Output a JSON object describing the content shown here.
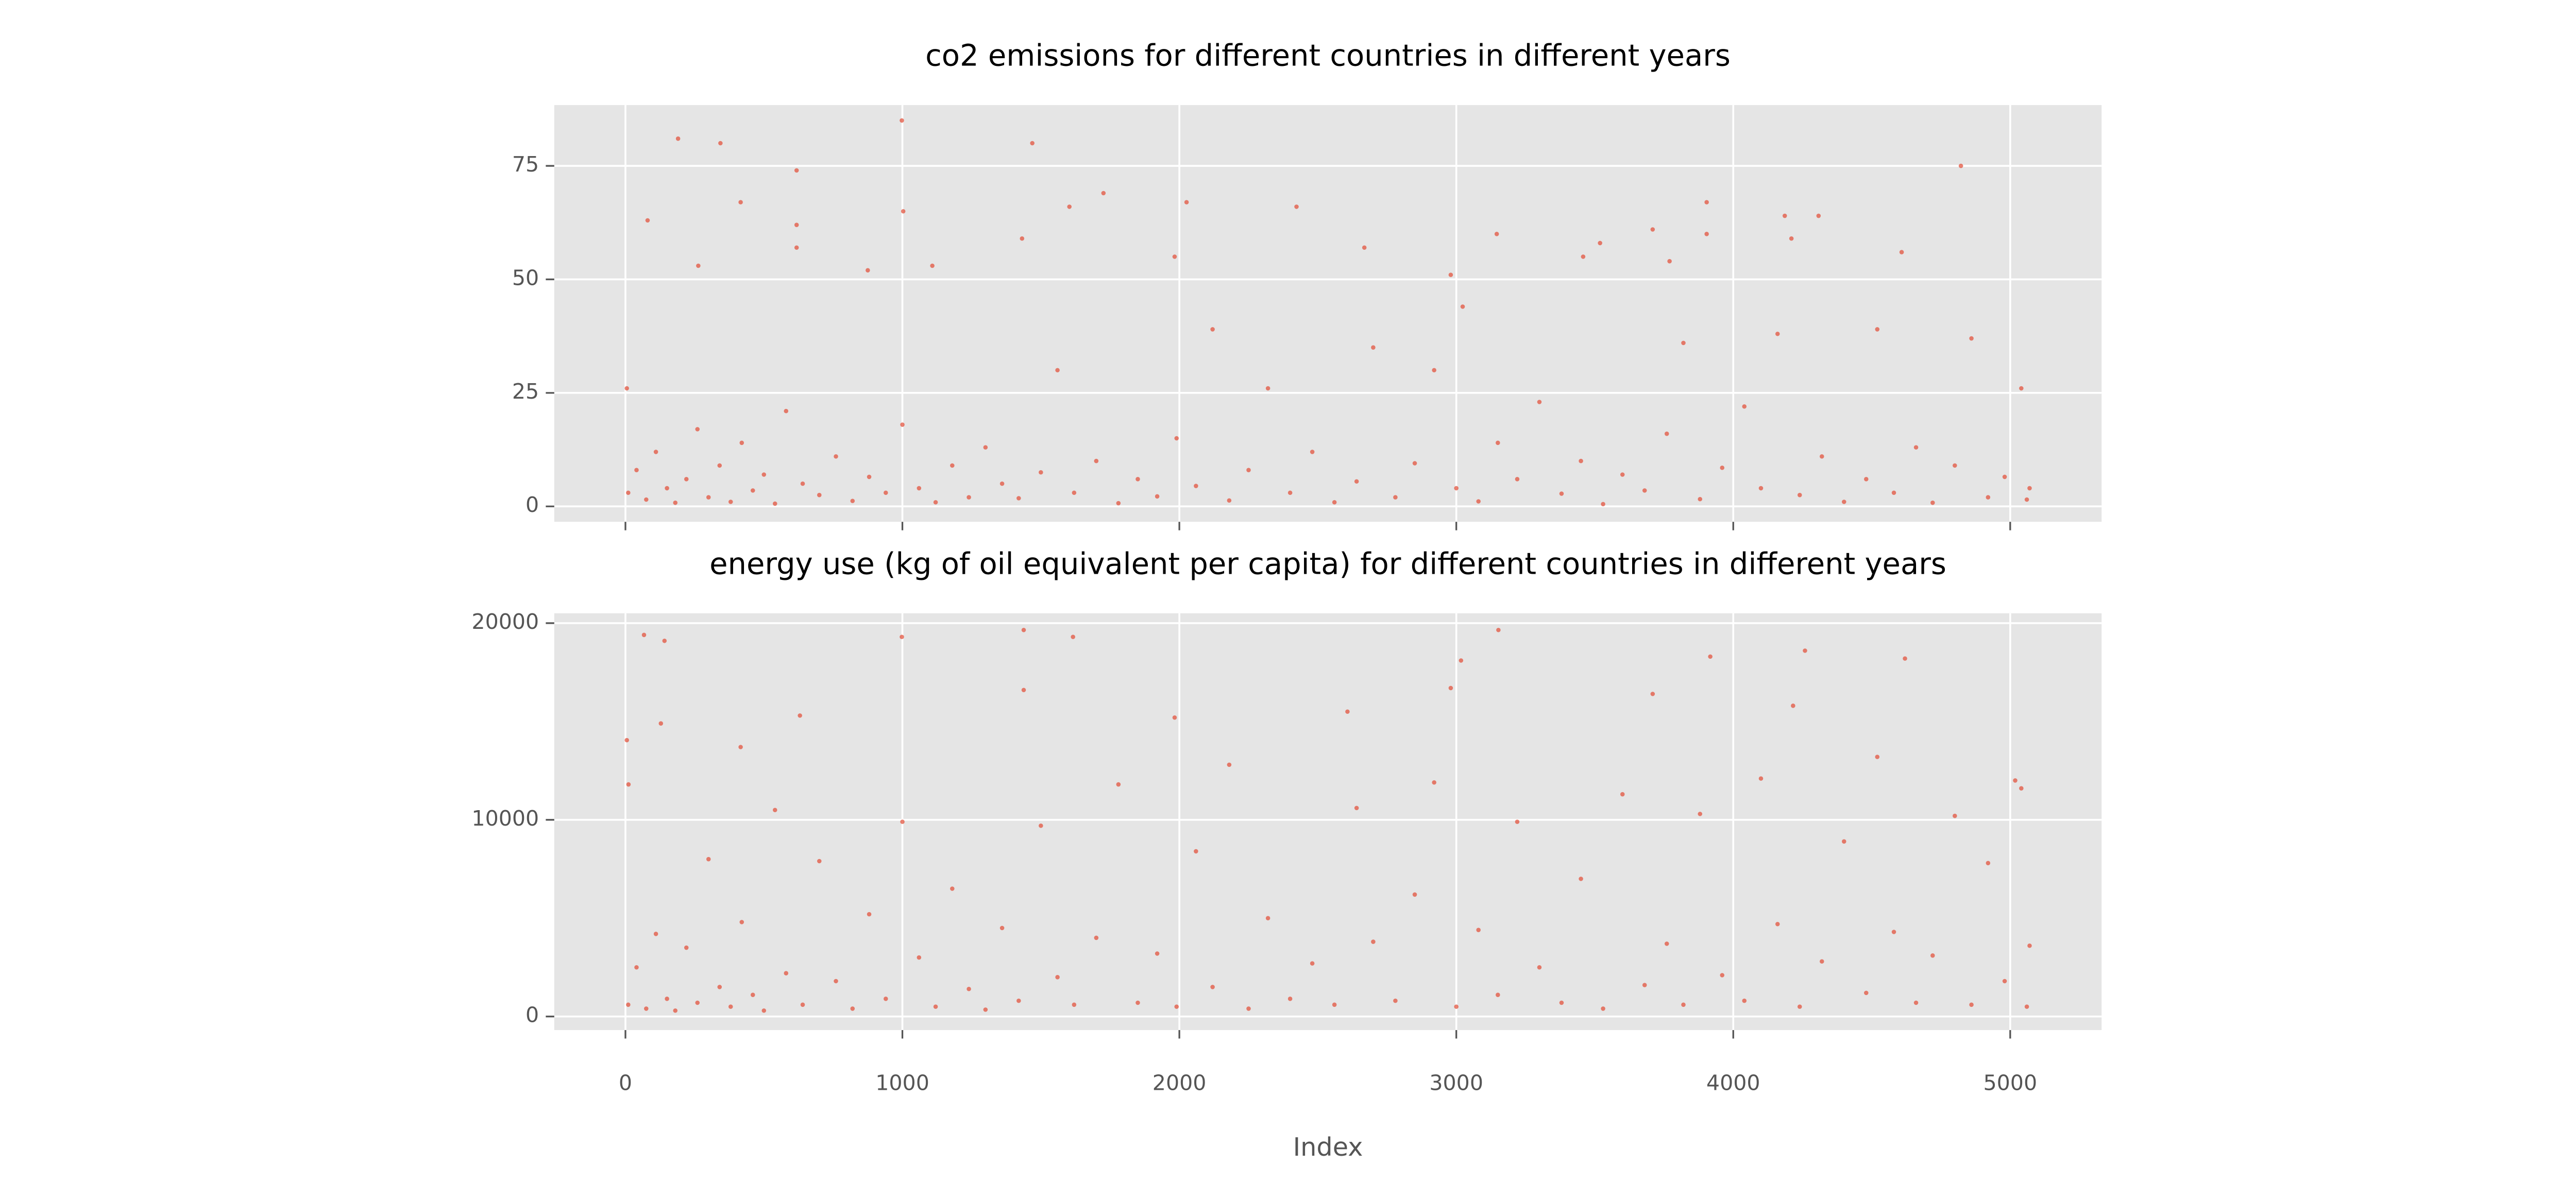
{
  "chart_data": [
    {
      "type": "scatter",
      "title": "co2 emissions for different countries in different years",
      "x": [
        10,
        40,
        75,
        110,
        150,
        180,
        220,
        260,
        300,
        340,
        380,
        420,
        460,
        500,
        540,
        580,
        640,
        700,
        760,
        820,
        880,
        940,
        1000,
        1060,
        1120,
        1180,
        1240,
        1300,
        1360,
        1420,
        1500,
        1560,
        1620,
        1700,
        1780,
        1850,
        1920,
        1990,
        2060,
        2120,
        2180,
        2250,
        2320,
        2400,
        2480,
        2560,
        2640,
        2700,
        2780,
        2850,
        2920,
        3000,
        3080,
        3150,
        3220,
        3300,
        3380,
        3450,
        3530,
        3600,
        3680,
        3760,
        3820,
        3880,
        3960,
        4040,
        4100,
        4160,
        4240,
        4320,
        4400,
        4480,
        4520,
        4580,
        4660,
        4720,
        4800,
        4860,
        4920,
        4980,
        5040,
        5060,
        5070,
        5,
        80,
        190,
        263,
        343,
        416,
        618,
        618,
        618,
        875,
        998,
        1003,
        1108,
        1432,
        1469,
        1603,
        1726,
        1983,
        2026,
        2423,
        2668,
        2980,
        3023,
        3146,
        3458,
        3519,
        3709,
        3770,
        3904,
        3904,
        4186,
        4210,
        4308,
        4608,
        4822
      ],
      "y": [
        3,
        8,
        1.5,
        12,
        4,
        0.8,
        6,
        17,
        2,
        9,
        1,
        14,
        3.5,
        7,
        0.6,
        21,
        5,
        2.5,
        11,
        1.2,
        6.5,
        3,
        18,
        4,
        0.9,
        9,
        2,
        13,
        5,
        1.8,
        7.5,
        30,
        3,
        10,
        0.7,
        6,
        2.2,
        15,
        4.5,
        39,
        1.3,
        8,
        26,
        3,
        12,
        0.9,
        5.5,
        35,
        2,
        9.5,
        30,
        4,
        1.1,
        14,
        6,
        23,
        2.8,
        10,
        0.5,
        7,
        3.5,
        16,
        36,
        1.6,
        8.5,
        22,
        4,
        38,
        2.5,
        11,
        1,
        6,
        39,
        3,
        13,
        0.8,
        9,
        37,
        2,
        6.5,
        26,
        1.5,
        4,
        26,
        63,
        81,
        53,
        80,
        67,
        74,
        62,
        57,
        52,
        85,
        65,
        53,
        59,
        80,
        66,
        69,
        55,
        67,
        66,
        57,
        51,
        44,
        60,
        55,
        58,
        61,
        54,
        67,
        60,
        64,
        59,
        64,
        56,
        75
      ],
      "color": "#e24a33",
      "xlim": [
        -257,
        5330
      ],
      "ylim": [
        -3.4,
        88.4
      ],
      "xticks": [
        0,
        1000,
        2000,
        3000,
        4000,
        5000
      ],
      "xtick_labels": false,
      "yticks": [
        0,
        25,
        50,
        75
      ],
      "grid": true
    },
    {
      "type": "scatter",
      "title": "energy use (kg of oil equivalent per capita) for different countries in different years",
      "xlabel": "Index",
      "x": [
        10,
        40,
        75,
        110,
        150,
        180,
        220,
        260,
        300,
        340,
        380,
        420,
        460,
        500,
        540,
        580,
        640,
        700,
        760,
        820,
        880,
        940,
        1000,
        1060,
        1120,
        1180,
        1240,
        1300,
        1360,
        1420,
        1500,
        1560,
        1620,
        1700,
        1780,
        1850,
        1920,
        1990,
        2060,
        2120,
        2180,
        2250,
        2320,
        2400,
        2480,
        2560,
        2640,
        2700,
        2780,
        2850,
        2920,
        3000,
        3080,
        3150,
        3220,
        3300,
        3380,
        3450,
        3530,
        3600,
        3680,
        3760,
        3820,
        3880,
        3960,
        4040,
        4100,
        4160,
        4240,
        4320,
        4400,
        4480,
        4520,
        4580,
        4660,
        4720,
        4800,
        4860,
        4920,
        4980,
        5040,
        5060,
        5070,
        5,
        11,
        67,
        141,
        128,
        416,
        630,
        998,
        1438,
        1438,
        1616,
        1983,
        2607,
        2980,
        3017,
        3152,
        3709,
        3917,
        4216,
        4259,
        4620,
        5018
      ],
      "y": [
        600,
        2500,
        400,
        4200,
        900,
        300,
        3500,
        700,
        8000,
        1500,
        500,
        4800,
        1100,
        300,
        10500,
        2200,
        600,
        7900,
        1800,
        400,
        5200,
        900,
        9900,
        3000,
        500,
        6500,
        1400,
        350,
        4500,
        800,
        9700,
        2000,
        600,
        4000,
        11800,
        700,
        3200,
        500,
        8400,
        1500,
        12800,
        400,
        5000,
        900,
        2700,
        600,
        10600,
        3800,
        800,
        6200,
        11900,
        500,
        4400,
        1100,
        9900,
        2500,
        700,
        7000,
        400,
        11300,
        1600,
        3700,
        600,
        10300,
        2100,
        800,
        12100,
        4700,
        500,
        2800,
        8900,
        1200,
        13200,
        4300,
        700,
        3100,
        10200,
        600,
        7800,
        1800,
        11600,
        500,
        3600,
        14050,
        11800,
        19400,
        19100,
        14900,
        13700,
        15300,
        19300,
        19650,
        16600,
        19300,
        15200,
        15500,
        16700,
        18100,
        19650,
        16400,
        18300,
        15800,
        18600,
        18200,
        12000
      ],
      "color": "#e24a33",
      "xlim": [
        -257,
        5330
      ],
      "ylim": [
        -690,
        20500
      ],
      "xticks": [
        0,
        1000,
        2000,
        3000,
        4000,
        5000
      ],
      "xtick_labels": true,
      "yticks": [
        0,
        10000,
        20000
      ],
      "grid": true
    }
  ]
}
